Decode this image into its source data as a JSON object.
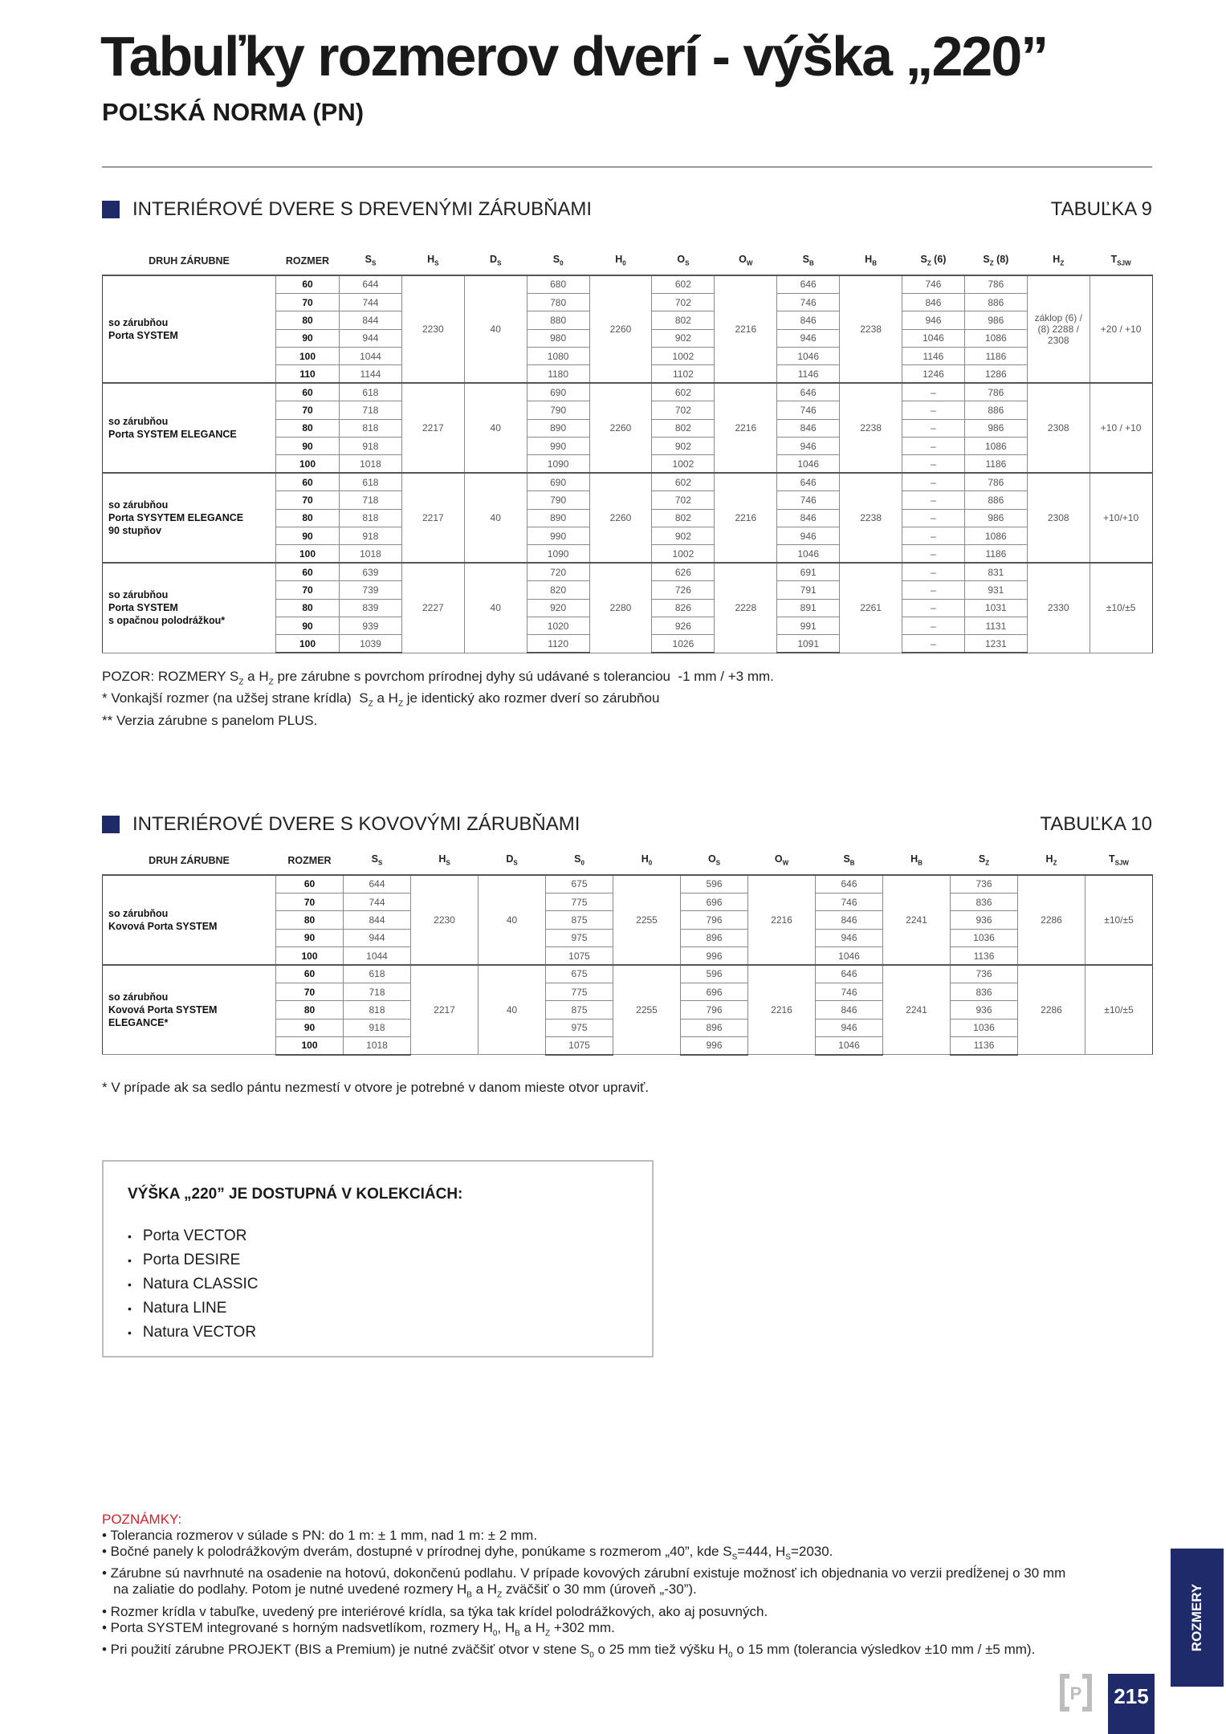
{
  "title": "Tabuľky rozmerov dverí - výška „220”",
  "subtitle": "POĽSKÁ NORMA (PN)",
  "colors": {
    "accent": "#1f2a6b",
    "notes_title": "#d4202a"
  },
  "table9": {
    "heading": "INTERIÉROVÉ DVERE S DREVENÝMI ZÁRUBŇAMI",
    "tag": "TABUĽKA 9",
    "headers": [
      {
        "t": "DRUH ZÁRUBNE"
      },
      {
        "t": "ROZMER"
      },
      {
        "t": "S",
        "sub": "S"
      },
      {
        "t": "H",
        "sub": "S"
      },
      {
        "t": "D",
        "sub": "S"
      },
      {
        "t": "S",
        "sub": "0"
      },
      {
        "t": "H",
        "sub": "0"
      },
      {
        "t": "O",
        "sub": "S"
      },
      {
        "t": "O",
        "sub": "W"
      },
      {
        "t": "S",
        "sub": "B"
      },
      {
        "t": "H",
        "sub": "B"
      },
      {
        "t": "S",
        "sub": "Z",
        "after": " (6)"
      },
      {
        "t": "S",
        "sub": "Z",
        "after": " (8)"
      },
      {
        "t": "H",
        "sub": "Z"
      },
      {
        "t": "T",
        "sub": "SJW"
      }
    ],
    "columns": [
      "rozmer",
      "ss",
      "hs",
      "ds",
      "s0",
      "h0",
      "os",
      "ow",
      "sb",
      "hb",
      "sz6",
      "sz8",
      "hz",
      "t"
    ],
    "merged": [
      "hs",
      "ds",
      "h0",
      "ow",
      "hb",
      "hz",
      "t"
    ],
    "groups": [
      {
        "label": [
          "so zárubňou",
          "Porta SYSTEM"
        ],
        "hs": "2230",
        "ds": "40",
        "h0": "2260",
        "ow": "2216",
        "hb": "2238",
        "hz": "záklop (6) / (8) 2288 / 2308",
        "t": "+20 / +10",
        "rows": [
          {
            "rozmer": "60",
            "ss": "644",
            "s0": "680",
            "os": "602",
            "sb": "646",
            "sz6": "746",
            "sz8": "786"
          },
          {
            "rozmer": "70",
            "ss": "744",
            "s0": "780",
            "os": "702",
            "sb": "746",
            "sz6": "846",
            "sz8": "886"
          },
          {
            "rozmer": "80",
            "ss": "844",
            "s0": "880",
            "os": "802",
            "sb": "846",
            "sz6": "946",
            "sz8": "986"
          },
          {
            "rozmer": "90",
            "ss": "944",
            "s0": "980",
            "os": "902",
            "sb": "946",
            "sz6": "1046",
            "sz8": "1086"
          },
          {
            "rozmer": "100",
            "ss": "1044",
            "s0": "1080",
            "os": "1002",
            "sb": "1046",
            "sz6": "1146",
            "sz8": "1186"
          },
          {
            "rozmer": "110",
            "ss": "1144",
            "s0": "1180",
            "os": "1102",
            "sb": "1146",
            "sz6": "1246",
            "sz8": "1286"
          }
        ]
      },
      {
        "label": [
          "so zárubňou",
          "Porta SYSTEM ELEGANCE"
        ],
        "hs": "2217",
        "ds": "40",
        "h0": "2260",
        "ow": "2216",
        "hb": "2238",
        "hz": "2308",
        "t": "+10 / +10",
        "rows": [
          {
            "rozmer": "60",
            "ss": "618",
            "s0": "690",
            "os": "602",
            "sb": "646",
            "sz6": "–",
            "sz8": "786"
          },
          {
            "rozmer": "70",
            "ss": "718",
            "s0": "790",
            "os": "702",
            "sb": "746",
            "sz6": "–",
            "sz8": "886"
          },
          {
            "rozmer": "80",
            "ss": "818",
            "s0": "890",
            "os": "802",
            "sb": "846",
            "sz6": "–",
            "sz8": "986"
          },
          {
            "rozmer": "90",
            "ss": "918",
            "s0": "990",
            "os": "902",
            "sb": "946",
            "sz6": "–",
            "sz8": "1086"
          },
          {
            "rozmer": "100",
            "ss": "1018",
            "s0": "1090",
            "os": "1002",
            "sb": "1046",
            "sz6": "–",
            "sz8": "1186"
          }
        ]
      },
      {
        "label": [
          "so zárubňou",
          "Porta SYSYTEM ELEGANCE",
          "90 stupňov"
        ],
        "hs": "2217",
        "ds": "40",
        "h0": "2260",
        "ow": "2216",
        "hb": "2238",
        "hz": "2308",
        "t": "+10/+10",
        "rows": [
          {
            "rozmer": "60",
            "ss": "618",
            "s0": "690",
            "os": "602",
            "sb": "646",
            "sz6": "–",
            "sz8": "786"
          },
          {
            "rozmer": "70",
            "ss": "718",
            "s0": "790",
            "os": "702",
            "sb": "746",
            "sz6": "–",
            "sz8": "886"
          },
          {
            "rozmer": "80",
            "ss": "818",
            "s0": "890",
            "os": "802",
            "sb": "846",
            "sz6": "–",
            "sz8": "986"
          },
          {
            "rozmer": "90",
            "ss": "918",
            "s0": "990",
            "os": "902",
            "sb": "946",
            "sz6": "–",
            "sz8": "1086"
          },
          {
            "rozmer": "100",
            "ss": "1018",
            "s0": "1090",
            "os": "1002",
            "sb": "1046",
            "sz6": "–",
            "sz8": "1186"
          }
        ]
      },
      {
        "label": [
          "so zárubňou",
          "Porta SYSTEM",
          "s opačnou polodrážkou*"
        ],
        "hs": "2227",
        "ds": "40",
        "h0": "2280",
        "ow": "2228",
        "hb": "2261",
        "hz": "2330",
        "t": "±10/±5",
        "rows": [
          {
            "rozmer": "60",
            "ss": "639",
            "s0": "720",
            "os": "626",
            "sb": "691",
            "sz6": "–",
            "sz8": "831"
          },
          {
            "rozmer": "70",
            "ss": "739",
            "s0": "820",
            "os": "726",
            "sb": "791",
            "sz6": "–",
            "sz8": "931"
          },
          {
            "rozmer": "80",
            "ss": "839",
            "s0": "920",
            "os": "826",
            "sb": "891",
            "sz6": "–",
            "sz8": "1031"
          },
          {
            "rozmer": "90",
            "ss": "939",
            "s0": "1020",
            "os": "926",
            "sb": "991",
            "sz6": "–",
            "sz8": "1131"
          },
          {
            "rozmer": "100",
            "ss": "1039",
            "s0": "1120",
            "os": "1026",
            "sb": "1091",
            "sz6": "–",
            "sz8": "1231"
          }
        ]
      }
    ],
    "notes": [
      [
        "POZOR: ROZMERY S",
        {
          "sub": "Z"
        },
        " a H",
        {
          "sub": "Z"
        },
        " pre zárubne s povrchom prírodnej dyhy sú udávané s toleranciou  -1 mm / +3 mm."
      ],
      [
        "* Vonkajší rozmer (na užšej strane krídla)  S",
        {
          "sub": "Z"
        },
        " a H",
        {
          "sub": "Z"
        },
        " je identický ako rozmer dverí so zárubňou"
      ],
      [
        "** Verzia zárubne s panelom PLUS."
      ]
    ]
  },
  "table10": {
    "heading": "INTERIÉROVÉ DVERE S KOVOVÝMI ZÁRUBŇAMI",
    "tag": "TABUĽKA 10",
    "headers": [
      {
        "t": "DRUH ZÁRUBNE"
      },
      {
        "t": "ROZMER"
      },
      {
        "t": "S",
        "sub": "S"
      },
      {
        "t": "H",
        "sub": "S"
      },
      {
        "t": "D",
        "sub": "S"
      },
      {
        "t": "S",
        "sub": "0"
      },
      {
        "t": "H",
        "sub": "0"
      },
      {
        "t": "O",
        "sub": "S"
      },
      {
        "t": "O",
        "sub": "W"
      },
      {
        "t": "S",
        "sub": "B"
      },
      {
        "t": "H",
        "sub": "B"
      },
      {
        "t": "S",
        "sub": "Z"
      },
      {
        "t": "H",
        "sub": "Z"
      },
      {
        "t": "T",
        "sub": "SJW"
      }
    ],
    "columns": [
      "rozmer",
      "ss",
      "hs",
      "ds",
      "s0",
      "h0",
      "os",
      "ow",
      "sb",
      "hb",
      "sz",
      "hz",
      "t"
    ],
    "merged": [
      "hs",
      "ds",
      "h0",
      "ow",
      "hb",
      "hz",
      "t"
    ],
    "groups": [
      {
        "label": [
          "so zárubňou",
          "Kovová Porta SYSTEM"
        ],
        "hs": "2230",
        "ds": "40",
        "h0": "2255",
        "ow": "2216",
        "hb": "2241",
        "hz": "2286",
        "t": "±10/±5",
        "rows": [
          {
            "rozmer": "60",
            "ss": "644",
            "s0": "675",
            "os": "596",
            "sb": "646",
            "sz": "736"
          },
          {
            "rozmer": "70",
            "ss": "744",
            "s0": "775",
            "os": "696",
            "sb": "746",
            "sz": "836"
          },
          {
            "rozmer": "80",
            "ss": "844",
            "s0": "875",
            "os": "796",
            "sb": "846",
            "sz": "936"
          },
          {
            "rozmer": "90",
            "ss": "944",
            "s0": "975",
            "os": "896",
            "sb": "946",
            "sz": "1036"
          },
          {
            "rozmer": "100",
            "ss": "1044",
            "s0": "1075",
            "os": "996",
            "sb": "1046",
            "sz": "1136"
          }
        ]
      },
      {
        "label": [
          "so zárubňou",
          "Kovová Porta SYSTEM",
          "ELEGANCE*"
        ],
        "hs": "2217",
        "ds": "40",
        "h0": "2255",
        "ow": "2216",
        "hb": "2241",
        "hz": "2286",
        "t": "±10/±5",
        "rows": [
          {
            "rozmer": "60",
            "ss": "618",
            "s0": "675",
            "os": "596",
            "sb": "646",
            "sz": "736"
          },
          {
            "rozmer": "70",
            "ss": "718",
            "s0": "775",
            "os": "696",
            "sb": "746",
            "sz": "836"
          },
          {
            "rozmer": "80",
            "ss": "818",
            "s0": "875",
            "os": "796",
            "sb": "846",
            "sz": "936"
          },
          {
            "rozmer": "90",
            "ss": "918",
            "s0": "975",
            "os": "896",
            "sb": "946",
            "sz": "1036"
          },
          {
            "rozmer": "100",
            "ss": "1018",
            "s0": "1075",
            "os": "996",
            "sb": "1046",
            "sz": "1136"
          }
        ]
      }
    ],
    "notes": [
      [
        "* V prípade ak sa sedlo pántu nezmestí v otvore je potrebné v danom mieste otvor upraviť."
      ]
    ]
  },
  "collections": {
    "title": "VÝŠKA „220” JE DOSTUPNÁ V KOLEKCIÁCH:",
    "items": [
      "Porta VECTOR",
      "Porta DESIRE",
      "Natura CLASSIC",
      "Natura LINE",
      "Natura VECTOR"
    ]
  },
  "notes": {
    "title": "POZNÁMKY:",
    "lines": [
      [
        "• Tolerancia rozmerov v súlade s PN: do 1 m: ± 1 mm, nad 1 m: ± 2 mm."
      ],
      [
        "• Bočné panely k polodrážkovým dverám, dostupné v prírodnej dyhe, ponúkame s rozmerom „40”, kde S",
        {
          "sub": "S"
        },
        "=444, H",
        {
          "sub": "S"
        },
        "=2030."
      ],
      [
        "• Zárubne sú navrhnuté na osadenie na hotovú, dokončenú podlahu. V prípade kovových zárubní existuje možnosť ich objednania vo verzii predĺženej o 30 mm"
      ],
      [
        "   na zaliatie do podlahy. Potom je nutné uvedené rozmery H",
        {
          "sub": "B"
        },
        " a H",
        {
          "sub": "Z"
        },
        " zväčšiť o 30 mm (úroveň „-30”)."
      ],
      [
        "• Rozmer krídla v tabuľke, uvedený pre interiérové krídla, sa týka tak krídel polodrážkových, ako aj posuvných."
      ],
      [
        "• Porta SYSTEM integrované s horným nadsvetlíkom, rozmery H",
        {
          "sub": "0"
        },
        ", H",
        {
          "sub": "B"
        },
        " a H",
        {
          "sub": "Z"
        },
        " +302 mm."
      ],
      [
        "• Pri použití zárubne PROJEKT (BIS a Premium) je nutné zväčšiť otvor v stene S",
        {
          "sub": "0"
        },
        " o 25 mm tiež výšku H",
        {
          "sub": "0"
        },
        " o 15 mm (tolerancia výsledkov ±10 mm / ±5 mm)."
      ]
    ]
  },
  "side_tab": "ROZMERY",
  "page_number": "215",
  "logo_letter": "P"
}
